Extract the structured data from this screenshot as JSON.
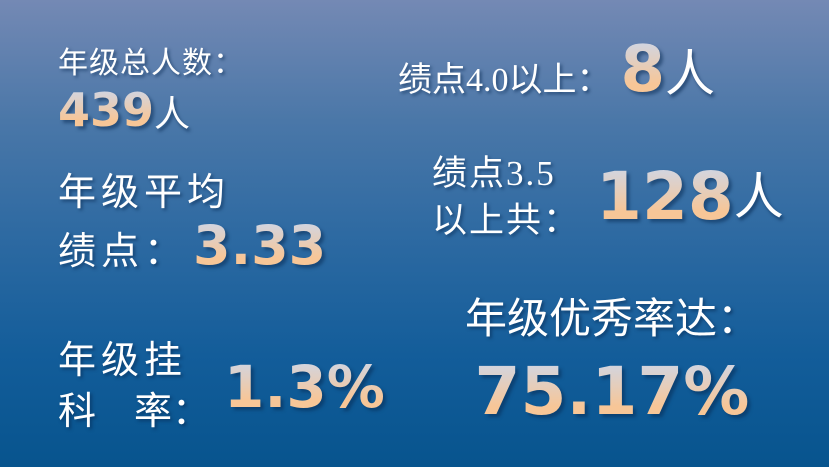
{
  "slide": {
    "bg_top": "#7489b4",
    "bg_mid": "#2e6aa2",
    "bg_bottom": "#07548e",
    "label_color": "#ffffff",
    "number_top": "#d2d5e0",
    "number_bottom": "#f7c697"
  },
  "stats": {
    "total": {
      "label": "年级总人数：",
      "value": "439",
      "unit": "人"
    },
    "gpa4": {
      "label": "绩点4.0以上：",
      "value": "8",
      "unit": "人"
    },
    "avg": {
      "label_line1": "年级平均",
      "label_line2": "绩点：",
      "value": "3.33"
    },
    "gpa35": {
      "label_line1": "绩点3.5",
      "label_line2": "以上共：",
      "value": "128",
      "unit": "人"
    },
    "fail": {
      "label_line1": "年级挂",
      "label_line2": "科　率：",
      "value": "1.3%"
    },
    "excellent": {
      "label": "年级优秀率达：",
      "value": "75.17%"
    }
  }
}
